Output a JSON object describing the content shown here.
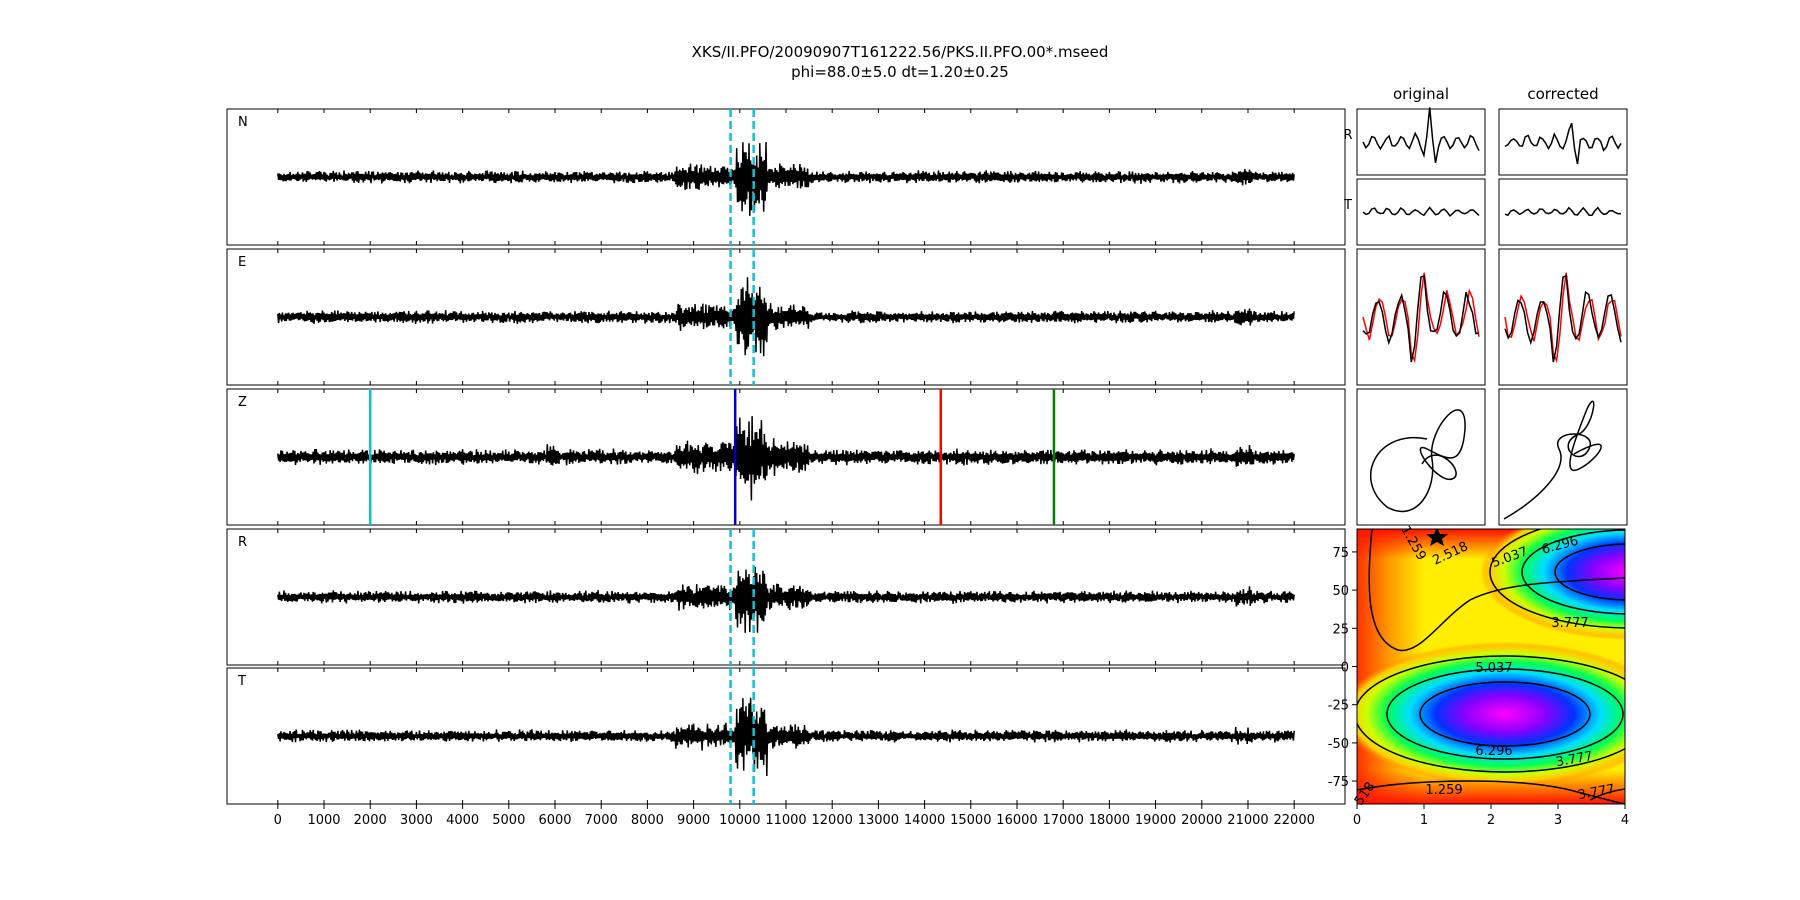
{
  "title": {
    "line1": "XKS/II.PFO/20090907T161222.56/PKS.II.PFO.00*.mseed",
    "line2": "phi=88.0±5.0 dt=1.20±0.25"
  },
  "column_titles": {
    "original": "original",
    "corrected": "corrected"
  },
  "row_labels": {
    "r": "R",
    "t": "T"
  },
  "colors": {
    "trace": "#000000",
    "window_marker": "#17becf",
    "particle_red": "#ff0000",
    "pick_cyan": "#17becf",
    "pick_blue": "#0000cc",
    "pick_red": "#ff0000",
    "pick_green": "#008000"
  },
  "chart_data": [
    {
      "type": "line",
      "name": "seismogram_traces",
      "channels": [
        {
          "label": "N",
          "markers": "window"
        },
        {
          "label": "E",
          "markers": "window"
        },
        {
          "label": "Z",
          "markers": "picks"
        },
        {
          "label": "R",
          "markers": "window"
        },
        {
          "label": "T",
          "markers": "window"
        }
      ],
      "xlim": [
        -1100,
        23100
      ],
      "xticks": [
        0,
        1000,
        2000,
        3000,
        4000,
        5000,
        6000,
        7000,
        8000,
        9000,
        10000,
        11000,
        12000,
        13000,
        14000,
        15000,
        16000,
        17000,
        18000,
        19000,
        20000,
        21000,
        22000
      ],
      "trace_range": [
        0,
        22000
      ],
      "window": [
        9800,
        10300
      ],
      "picks": [
        {
          "x": 2000,
          "color": "#17becf"
        },
        {
          "x": 9900,
          "color": "#0000cc"
        },
        {
          "x": 14350,
          "color": "#ff0000"
        },
        {
          "x": 16800,
          "color": "#008000"
        }
      ]
    },
    {
      "type": "heatmap",
      "name": "error_surface",
      "xlim": [
        0,
        4
      ],
      "ylim": [
        -90,
        90
      ],
      "xticks": [
        0,
        1,
        2,
        3,
        4
      ],
      "yticks": [
        75,
        50,
        25,
        0,
        -25,
        -50,
        -75
      ],
      "contour_labels": [
        "1.259",
        "2.518",
        "5.037",
        "6.296",
        "3.777",
        "5.037",
        "6.296",
        "3.777",
        "1.259",
        "3.777",
        "518"
      ],
      "best_fit": {
        "dt": 1.2,
        "phi": 88.0
      }
    }
  ]
}
